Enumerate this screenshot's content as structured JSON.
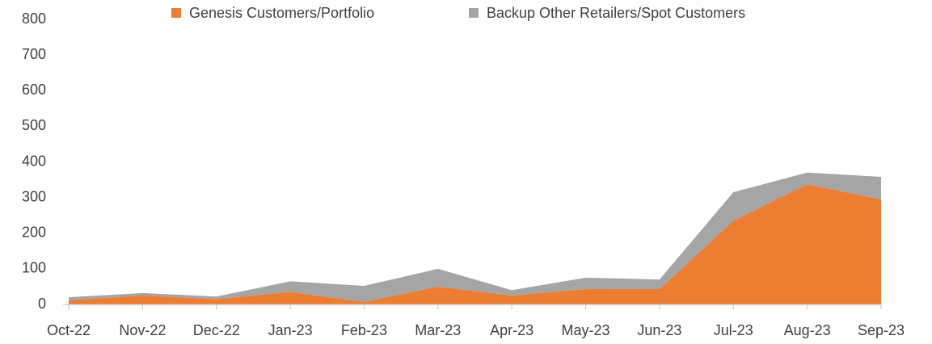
{
  "chart_data": {
    "type": "stacked_area",
    "categories": [
      "Oct-22",
      "Nov-22",
      "Dec-22",
      "Jan-23",
      "Feb-23",
      "Mar-23",
      "Apr-23",
      "May-23",
      "Jun-23",
      "Jul-23",
      "Aug-23",
      "Sep-23"
    ],
    "series": [
      {
        "name": "Genesis Customers/Portfolio",
        "color": "#ED7D31",
        "values": [
          12,
          25,
          15,
          35,
          7,
          50,
          25,
          43,
          43,
          235,
          337,
          295
        ]
      },
      {
        "name": "Backup Other Retailers/Spot Customers",
        "color": "#A5A5A5",
        "values": [
          8,
          7,
          7,
          30,
          45,
          50,
          15,
          32,
          27,
          80,
          33,
          63
        ]
      }
    ],
    "ylim": [
      0,
      800
    ],
    "yticks": [
      0,
      100,
      200,
      300,
      400,
      500,
      600,
      700,
      800
    ],
    "grid": false,
    "legend": "top"
  }
}
